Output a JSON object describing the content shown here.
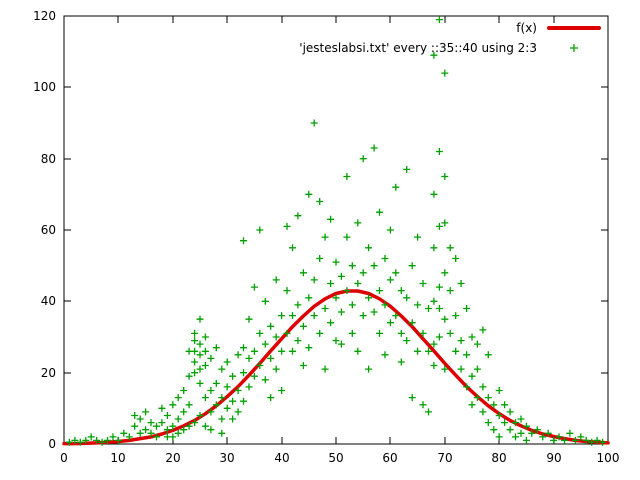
{
  "chart_data": {
    "type": "scatter",
    "title": "",
    "xlabel": "",
    "ylabel": "",
    "xlim": [
      0,
      100
    ],
    "ylim": [
      0,
      120
    ],
    "xticks": [
      0,
      10,
      20,
      30,
      40,
      50,
      60,
      70,
      80,
      90,
      100
    ],
    "yticks": [
      0,
      20,
      40,
      60,
      80,
      100,
      120
    ],
    "grid": false,
    "legend_position": "top-right",
    "axis_color": "#000000",
    "background": "#ffffff",
    "series": [
      {
        "name": "fx",
        "label": "f(x)",
        "type": "line",
        "color": "#dd0000",
        "points": [
          [
            0,
            0.1
          ],
          [
            2,
            0.1
          ],
          [
            4,
            0.2
          ],
          [
            6,
            0.3
          ],
          [
            8,
            0.5
          ],
          [
            10,
            0.7
          ],
          [
            12,
            1.0
          ],
          [
            14,
            1.5
          ],
          [
            16,
            2.0
          ],
          [
            18,
            2.8
          ],
          [
            20,
            3.8
          ],
          [
            22,
            5.1
          ],
          [
            24,
            6.6
          ],
          [
            26,
            8.5
          ],
          [
            28,
            10.7
          ],
          [
            30,
            13.3
          ],
          [
            32,
            16.1
          ],
          [
            34,
            19.3
          ],
          [
            36,
            22.6
          ],
          [
            38,
            26.1
          ],
          [
            40,
            29.5
          ],
          [
            42,
            32.9
          ],
          [
            44,
            35.9
          ],
          [
            46,
            38.6
          ],
          [
            48,
            40.7
          ],
          [
            50,
            42.2
          ],
          [
            52,
            42.9
          ],
          [
            54,
            42.9
          ],
          [
            56,
            42.2
          ],
          [
            58,
            40.7
          ],
          [
            60,
            38.6
          ],
          [
            62,
            35.9
          ],
          [
            64,
            32.9
          ],
          [
            66,
            29.5
          ],
          [
            68,
            26.1
          ],
          [
            70,
            22.6
          ],
          [
            72,
            19.3
          ],
          [
            74,
            16.1
          ],
          [
            76,
            13.3
          ],
          [
            78,
            10.7
          ],
          [
            80,
            8.5
          ],
          [
            82,
            6.6
          ],
          [
            84,
            5.1
          ],
          [
            86,
            3.8
          ],
          [
            88,
            2.8
          ],
          [
            90,
            2.1
          ],
          [
            92,
            1.5
          ],
          [
            94,
            1.0
          ],
          [
            96,
            0.7
          ],
          [
            98,
            0.5
          ],
          [
            100,
            0.3
          ]
        ]
      },
      {
        "name": "jesteslabsi-data",
        "label": "'jesteslabsi.txt' every ::35::40 using 2:3",
        "type": "points",
        "marker": "plus",
        "color": "#00a000",
        "points": [
          [
            1,
            0.5
          ],
          [
            2,
            1
          ],
          [
            3,
            0.5
          ],
          [
            4,
            1
          ],
          [
            5,
            2
          ],
          [
            6,
            1
          ],
          [
            7,
            0.5
          ],
          [
            8,
            1
          ],
          [
            9,
            2
          ],
          [
            10,
            1
          ],
          [
            11,
            3
          ],
          [
            12,
            2
          ],
          [
            13,
            5
          ],
          [
            13,
            8
          ],
          [
            14,
            3
          ],
          [
            14,
            7
          ],
          [
            15,
            4
          ],
          [
            15,
            9
          ],
          [
            16,
            3
          ],
          [
            16,
            6
          ],
          [
            17,
            5
          ],
          [
            17,
            2
          ],
          [
            18,
            6
          ],
          [
            18,
            10
          ],
          [
            19,
            4
          ],
          [
            19,
            2
          ],
          [
            19,
            8
          ],
          [
            20,
            5
          ],
          [
            20,
            2
          ],
          [
            20,
            11
          ],
          [
            21,
            7
          ],
          [
            21,
            3
          ],
          [
            21,
            13
          ],
          [
            22,
            9
          ],
          [
            22,
            4
          ],
          [
            22,
            15
          ],
          [
            23,
            11
          ],
          [
            23,
            5
          ],
          [
            23,
            19
          ],
          [
            23,
            26
          ],
          [
            24,
            6
          ],
          [
            24,
            20
          ],
          [
            24,
            23
          ],
          [
            24,
            26
          ],
          [
            24,
            29
          ],
          [
            24,
            31
          ],
          [
            25,
            8
          ],
          [
            25,
            17
          ],
          [
            25,
            21
          ],
          [
            25,
            25
          ],
          [
            25,
            28
          ],
          [
            25,
            35
          ],
          [
            26,
            5
          ],
          [
            26,
            13
          ],
          [
            26,
            22
          ],
          [
            26,
            26
          ],
          [
            26,
            30
          ],
          [
            27,
            4
          ],
          [
            27,
            9
          ],
          [
            27,
            15
          ],
          [
            27,
            24
          ],
          [
            28,
            11
          ],
          [
            28,
            17
          ],
          [
            28,
            27
          ],
          [
            29,
            3
          ],
          [
            29,
            7
          ],
          [
            29,
            13
          ],
          [
            29,
            21
          ],
          [
            30,
            10
          ],
          [
            30,
            16
          ],
          [
            30,
            23
          ],
          [
            31,
            7
          ],
          [
            31,
            12
          ],
          [
            31,
            19
          ],
          [
            32,
            9
          ],
          [
            32,
            15
          ],
          [
            32,
            25
          ],
          [
            33,
            12
          ],
          [
            33,
            20
          ],
          [
            33,
            27
          ],
          [
            33,
            57
          ],
          [
            34,
            16
          ],
          [
            34,
            24
          ],
          [
            34,
            35
          ],
          [
            35,
            19
          ],
          [
            35,
            26
          ],
          [
            35,
            44
          ],
          [
            36,
            22
          ],
          [
            36,
            31
          ],
          [
            36,
            60
          ],
          [
            37,
            18
          ],
          [
            37,
            28
          ],
          [
            37,
            40
          ],
          [
            38,
            13
          ],
          [
            38,
            24
          ],
          [
            38,
            33
          ],
          [
            39,
            21
          ],
          [
            39,
            30
          ],
          [
            39,
            46
          ],
          [
            40,
            15
          ],
          [
            40,
            26
          ],
          [
            40,
            36
          ],
          [
            41,
            31
          ],
          [
            41,
            43
          ],
          [
            41,
            61
          ],
          [
            42,
            26
          ],
          [
            42,
            36
          ],
          [
            42,
            55
          ],
          [
            43,
            29
          ],
          [
            43,
            39
          ],
          [
            43,
            64
          ],
          [
            44,
            22
          ],
          [
            44,
            33
          ],
          [
            44,
            48
          ],
          [
            45,
            27
          ],
          [
            45,
            41
          ],
          [
            45,
            70
          ],
          [
            46,
            36
          ],
          [
            46,
            46
          ],
          [
            46,
            90
          ],
          [
            47,
            31
          ],
          [
            47,
            52
          ],
          [
            47,
            68
          ],
          [
            48,
            21
          ],
          [
            48,
            38
          ],
          [
            48,
            58
          ],
          [
            49,
            34
          ],
          [
            49,
            45
          ],
          [
            49,
            63
          ],
          [
            50,
            29
          ],
          [
            50,
            41
          ],
          [
            50,
            51
          ],
          [
            51,
            28
          ],
          [
            51,
            37
          ],
          [
            51,
            47
          ],
          [
            52,
            43
          ],
          [
            52,
            58
          ],
          [
            52,
            75
          ],
          [
            53,
            31
          ],
          [
            53,
            39
          ],
          [
            53,
            50
          ],
          [
            54,
            26
          ],
          [
            54,
            45
          ],
          [
            54,
            62
          ],
          [
            55,
            36
          ],
          [
            55,
            48
          ],
          [
            55,
            80
          ],
          [
            56,
            21
          ],
          [
            56,
            41
          ],
          [
            56,
            55
          ],
          [
            57,
            37
          ],
          [
            57,
            50
          ],
          [
            57,
            83
          ],
          [
            58,
            31
          ],
          [
            58,
            43
          ],
          [
            58,
            65
          ],
          [
            59,
            25
          ],
          [
            59,
            39
          ],
          [
            59,
            52
          ],
          [
            60,
            34
          ],
          [
            60,
            46
          ],
          [
            60,
            60
          ],
          [
            61,
            36
          ],
          [
            61,
            48
          ],
          [
            61,
            72
          ],
          [
            62,
            23
          ],
          [
            62,
            31
          ],
          [
            62,
            43
          ],
          [
            63,
            29
          ],
          [
            63,
            41
          ],
          [
            63,
            77
          ],
          [
            64,
            13
          ],
          [
            64,
            34
          ],
          [
            64,
            50
          ],
          [
            65,
            26
          ],
          [
            65,
            39
          ],
          [
            65,
            58
          ],
          [
            66,
            11
          ],
          [
            66,
            31
          ],
          [
            66,
            45
          ],
          [
            67,
            9
          ],
          [
            67,
            26
          ],
          [
            67,
            38
          ],
          [
            68,
            22
          ],
          [
            68,
            28
          ],
          [
            68,
            40
          ],
          [
            68,
            55
          ],
          [
            68,
            70
          ],
          [
            68,
            109
          ],
          [
            69,
            30
          ],
          [
            69,
            38
          ],
          [
            69,
            44
          ],
          [
            69,
            61
          ],
          [
            69,
            82
          ],
          [
            69,
            119
          ],
          [
            70,
            21
          ],
          [
            70,
            35
          ],
          [
            70,
            48
          ],
          [
            70,
            62
          ],
          [
            70,
            75
          ],
          [
            70,
            104
          ],
          [
            71,
            31
          ],
          [
            71,
            43
          ],
          [
            71,
            55
          ],
          [
            72,
            26
          ],
          [
            72,
            36
          ],
          [
            72,
            52
          ],
          [
            73,
            21
          ],
          [
            73,
            29
          ],
          [
            73,
            45
          ],
          [
            74,
            16
          ],
          [
            74,
            25
          ],
          [
            74,
            38
          ],
          [
            75,
            11
          ],
          [
            75,
            19
          ],
          [
            75,
            30
          ],
          [
            76,
            13
          ],
          [
            76,
            21
          ],
          [
            76,
            28
          ],
          [
            77,
            9
          ],
          [
            77,
            16
          ],
          [
            77,
            32
          ],
          [
            78,
            6
          ],
          [
            78,
            13
          ],
          [
            78,
            25
          ],
          [
            79,
            4
          ],
          [
            79,
            11
          ],
          [
            80,
            2
          ],
          [
            80,
            8
          ],
          [
            80,
            15
          ],
          [
            81,
            6
          ],
          [
            81,
            11
          ],
          [
            82,
            4
          ],
          [
            82,
            9
          ],
          [
            83,
            2
          ],
          [
            83,
            6
          ],
          [
            84,
            3
          ],
          [
            84,
            7
          ],
          [
            85,
            1
          ],
          [
            85,
            5
          ],
          [
            86,
            3
          ],
          [
            87,
            4
          ],
          [
            88,
            2
          ],
          [
            89,
            3
          ],
          [
            90,
            1
          ],
          [
            91,
            2
          ],
          [
            92,
            1
          ],
          [
            93,
            3
          ],
          [
            94,
            1
          ],
          [
            95,
            2
          ],
          [
            96,
            1
          ],
          [
            97,
            0.5
          ],
          [
            98,
            1
          ],
          [
            99,
            0.5
          ]
        ]
      }
    ]
  }
}
